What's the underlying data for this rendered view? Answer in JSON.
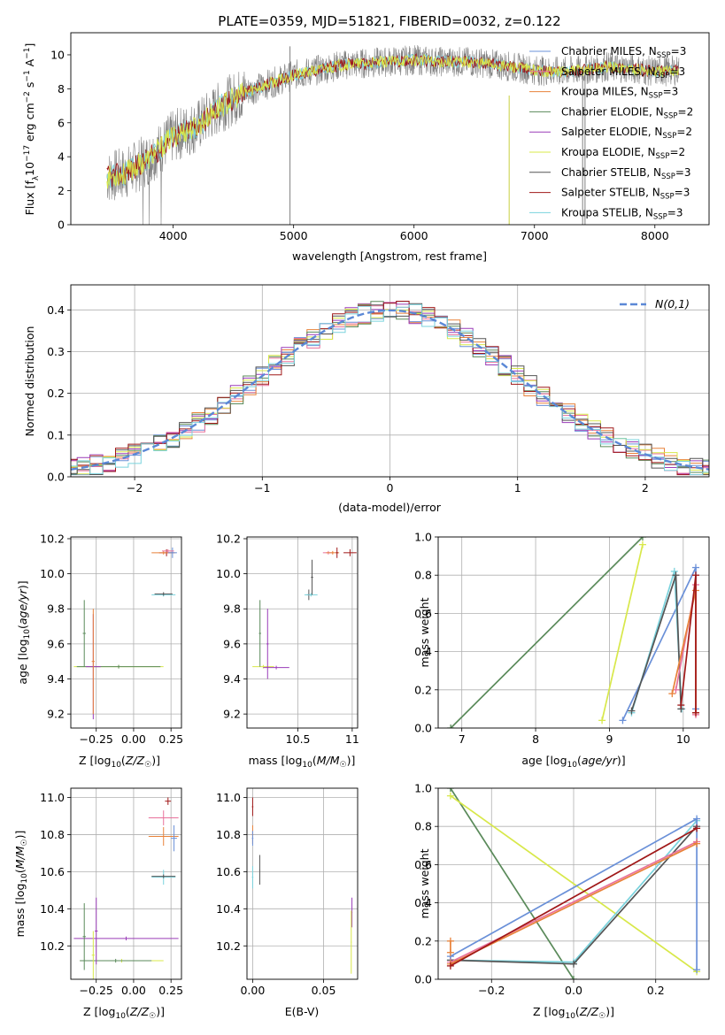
{
  "figure": {
    "title": "PLATE=0359, MJD=51821, FIBERID=0032, z=0.122"
  },
  "series_colors": {
    "Chabrier MILES": "#6a90d8",
    "Salpeter MILES": "#e8719b",
    "Kroupa MILES": "#e8823a",
    "Chabrier ELODIE": "#5a8a5a",
    "Salpeter ELODIE": "#9a3cb8",
    "Kroupa ELODIE": "#d8e84a",
    "Chabrier STELIB": "#555555",
    "Salpeter STELIB": "#a01818",
    "Kroupa STELIB": "#7ad3dd"
  },
  "chart_data": [
    {
      "id": "spectrum",
      "type": "line",
      "xlabel": "wavelength [Angstrom, rest frame]",
      "ylabel": "Flux [f_λ10^-17 erg cm^-2 s^-1 A^-1]",
      "xlim": [
        3150,
        8450
      ],
      "ylim": [
        0,
        11.3
      ],
      "xticks": [
        4000,
        5000,
        6000,
        7000,
        8000
      ],
      "yticks": [
        0,
        2,
        4,
        6,
        8,
        10
      ],
      "legend_position": "upper-right",
      "legend": [
        "Chabrier MILES, N_SSP=3",
        "Salpeter MILES, N_SSP=3",
        "Kroupa MILES, N_SSP=3",
        "Chabrier ELODIE, N_SSP=2",
        "Salpeter ELODIE, N_SSP=2",
        "Kroupa ELODIE, N_SSP=2",
        "Chabrier STELIB, N_SSP=3",
        "Salpeter STELIB, N_SSP=3",
        "Kroupa STELIB, N_SSP=3"
      ],
      "data_trend": {
        "x": [
          3450,
          3600,
          3800,
          4000,
          4200,
          4400,
          4600,
          4800,
          5000,
          5200,
          5400,
          5600,
          5800,
          6000,
          6200,
          6400,
          6600,
          6800,
          7000,
          7200,
          7400,
          7600,
          7800,
          8000,
          8200
        ],
        "y": [
          2.8,
          3.0,
          3.9,
          5.2,
          5.8,
          7.0,
          7.8,
          8.3,
          8.8,
          9.1,
          9.4,
          9.5,
          9.6,
          9.7,
          9.6,
          9.6,
          9.5,
          9.3,
          9.1,
          9.0,
          9.1,
          9.3,
          9.2,
          9.0,
          9.1
        ]
      }
    },
    {
      "id": "residuals",
      "type": "histogram",
      "xlabel": "(data-model)/error",
      "ylabel": "Normed distribution",
      "xlim": [
        -2.5,
        2.5
      ],
      "ylim": [
        0,
        0.46
      ],
      "xticks": [
        -2,
        -1,
        0,
        1,
        2
      ],
      "yticks": [
        0.0,
        0.1,
        0.2,
        0.3,
        0.4
      ],
      "grid": true,
      "legend": "N(0,1)",
      "legend_position": "upper-right",
      "bin_width": 0.1
    },
    {
      "id": "age_vs_Z",
      "type": "scatter",
      "xlabel": "Z [log10(Z/Z☉)]",
      "ylabel": "age [log10(age/yr)]",
      "xlim": [
        -0.42,
        0.32
      ],
      "ylim": [
        9.12,
        10.21
      ],
      "xticks": [
        -0.25,
        0.0,
        0.25
      ],
      "xtick_labels": [
        "−0.25",
        "0.00",
        "0.25"
      ],
      "yticks": [
        9.2,
        9.4,
        9.6,
        9.8,
        10.0,
        10.2
      ],
      "grid": true
    },
    {
      "id": "age_vs_mass",
      "type": "scatter",
      "xlabel": "mass [log10(M/M☉)]",
      "xlim": [
        10.03,
        11.05
      ],
      "ylim": [
        9.12,
        10.21
      ],
      "xticks": [
        10.5,
        11.0
      ],
      "yticks": [
        9.2,
        9.4,
        9.6,
        9.8,
        10.0,
        10.2
      ],
      "grid": true
    },
    {
      "id": "weight_vs_age",
      "type": "line",
      "xlabel": "age [log10(age/yr)]",
      "ylabel": "mass weight",
      "xlim": [
        6.68,
        10.35
      ],
      "ylim": [
        0,
        1.0
      ],
      "xticks": [
        7,
        8,
        9,
        10
      ],
      "yticks": [
        0.0,
        0.2,
        0.4,
        0.6,
        0.8,
        1.0
      ],
      "grid": true
    },
    {
      "id": "mass_vs_Z",
      "type": "scatter",
      "xlabel": "Z [log10(Z/Z☉)]",
      "ylabel": "mass [log10(M/M☉)]",
      "xlim": [
        -0.42,
        0.32
      ],
      "ylim": [
        10.02,
        11.05
      ],
      "xticks": [
        -0.25,
        0.0,
        0.25
      ],
      "xtick_labels": [
        "−0.25",
        "0.00",
        "0.25"
      ],
      "yticks": [
        10.2,
        10.4,
        10.6,
        10.8,
        11.0
      ],
      "grid": true
    },
    {
      "id": "mass_vs_ebv",
      "type": "scatter",
      "xlabel": "E(B-V)",
      "xlim": [
        -0.004,
        0.074
      ],
      "ylim": [
        10.02,
        11.05
      ],
      "xticks": [
        0.0,
        0.05
      ],
      "xtick_labels": [
        "0.00",
        "0.05"
      ],
      "yticks": [
        10.2,
        10.4,
        10.6,
        10.8,
        11.0
      ],
      "grid": true
    },
    {
      "id": "weight_vs_Z",
      "type": "line",
      "xlabel": "Z [log10(Z/Z☉)]",
      "ylabel": "mass weight",
      "xlim": [
        -0.33,
        0.33
      ],
      "ylim": [
        0,
        1.0
      ],
      "xticks": [
        -0.2,
        0.0,
        0.2
      ],
      "xtick_labels": [
        "−0.2",
        "0.0",
        "0.2"
      ],
      "yticks": [
        0.0,
        0.2,
        0.4,
        0.6,
        0.8,
        1.0
      ],
      "grid": true
    }
  ]
}
